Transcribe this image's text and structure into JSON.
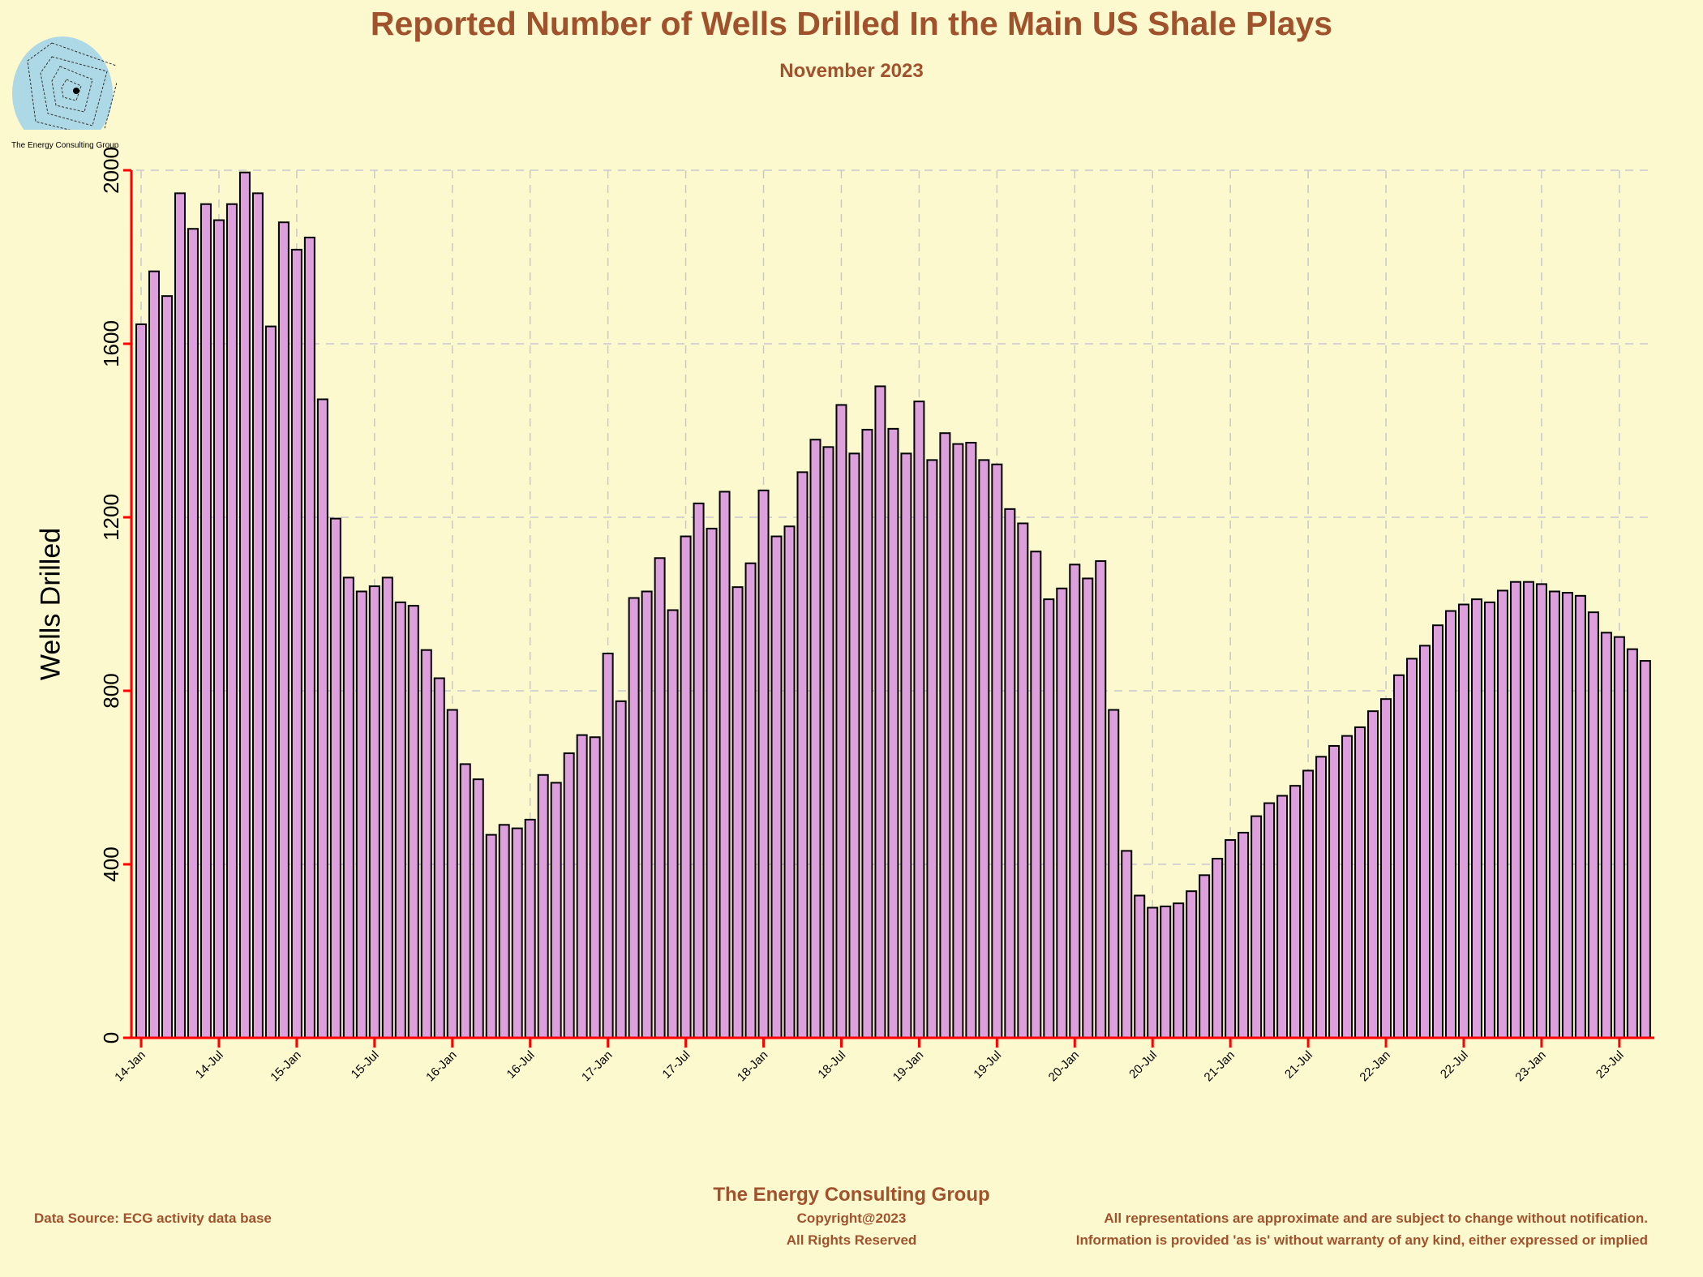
{
  "header": {
    "title": "Reported Number of Wells Drilled In the Main US Shale Plays",
    "subtitle": "November 2023"
  },
  "logo": {
    "text": "The Energy Consulting Group",
    "color": "#add8e6"
  },
  "footer": {
    "org": "The Energy Consulting Group",
    "source": "Data Source: ECG activity data base",
    "copyright": "Copyright@2023",
    "rights": "All Rights Reserved",
    "disclaimer1": "All representations are approximate and are subject to change without notification.",
    "disclaimer2": "Information is provided 'as is' without warranty of any kind, either expressed or implied"
  },
  "chart_data": {
    "type": "bar",
    "title": "Reported Number of Wells Drilled In the Main US Shale Plays",
    "subtitle": "November 2023",
    "xlabel": "",
    "ylabel": "Wells Drilled",
    "ylim": [
      0,
      2000
    ],
    "yticks": [
      0,
      400,
      800,
      1200,
      1600,
      2000
    ],
    "xtick_labels": [
      "14-Jan",
      "14-Jul",
      "15-Jan",
      "15-Jul",
      "16-Jan",
      "16-Jul",
      "17-Jan",
      "17-Jul",
      "18-Jan",
      "18-Jul",
      "19-Jan",
      "19-Jul",
      "20-Jan",
      "20-Jul",
      "21-Jan",
      "21-Jul",
      "22-Jan",
      "22-Jul",
      "23-Jan",
      "23-Jul"
    ],
    "grid": true,
    "bar_color": "#dda0dd",
    "axis_color": "#ff0000",
    "start_month": "2014-01",
    "end_month": "2023-09",
    "values": [
      1645,
      1767,
      1710,
      1947,
      1865,
      1922,
      1885,
      1922,
      1995,
      1947,
      1640,
      1880,
      1817,
      1845,
      1472,
      1197,
      1061,
      1029,
      1041,
      1061,
      1004,
      996,
      894,
      829,
      756,
      631,
      596,
      468,
      491,
      483,
      503,
      606,
      588,
      656,
      698,
      693,
      886,
      776,
      1014,
      1029,
      1106,
      986,
      1156,
      1232,
      1174,
      1259,
      1039,
      1094,
      1262,
      1156,
      1179,
      1304,
      1379,
      1362,
      1459,
      1347,
      1402,
      1502,
      1404,
      1347,
      1467,
      1332,
      1394,
      1369,
      1372,
      1332,
      1322,
      1219,
      1186,
      1121,
      1011,
      1036,
      1091,
      1059,
      1099,
      756,
      431,
      328,
      300,
      303,
      310,
      338,
      375,
      413,
      456,
      473,
      511,
      541,
      558,
      581,
      616,
      648,
      673,
      696,
      716,
      753,
      781,
      836,
      874,
      904,
      951,
      984,
      999,
      1011,
      1004,
      1031,
      1051,
      1051,
      1046,
      1029,
      1026,
      1019,
      981,
      934,
      924,
      896,
      869
    ]
  }
}
